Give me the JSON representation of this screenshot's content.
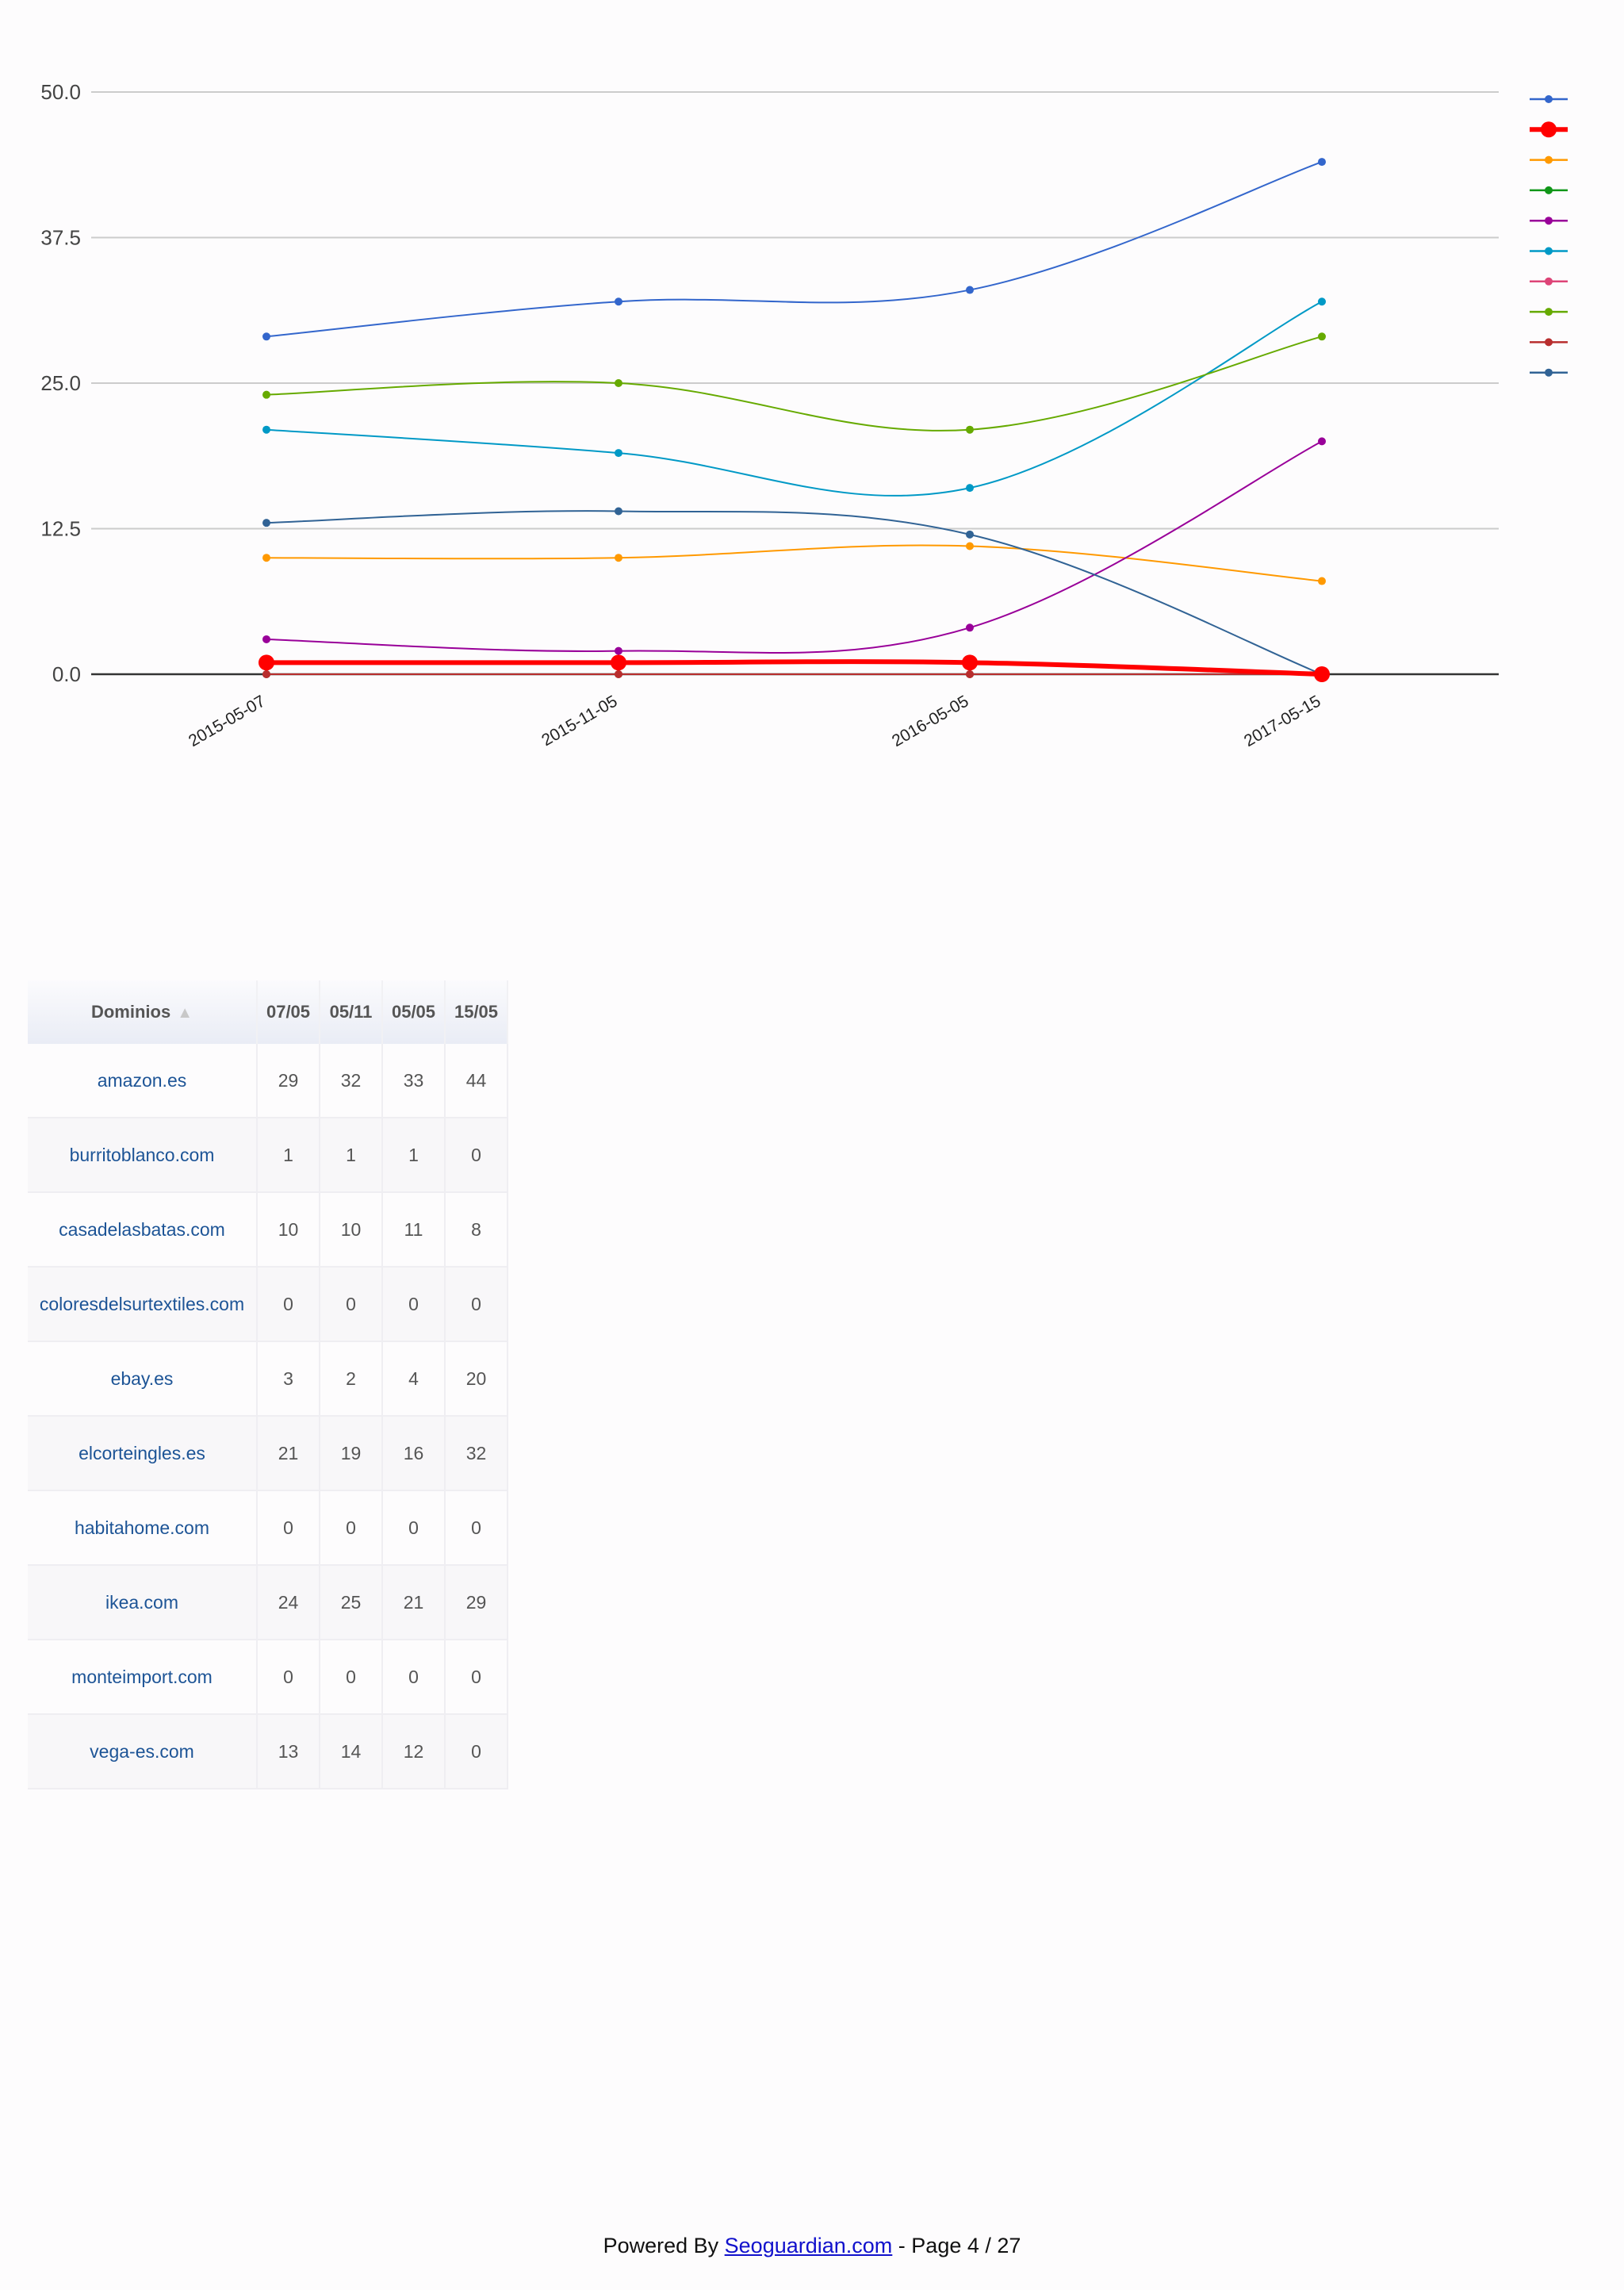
{
  "chart_data": {
    "type": "line",
    "title": "",
    "xlabel": "",
    "ylabel": "",
    "x": [
      "2015-05-07",
      "2015-11-05",
      "2016-05-05",
      "2017-05-15"
    ],
    "ylim": [
      0,
      50
    ],
    "yticks": [
      "0.0",
      "12.5",
      "25.0",
      "37.5",
      "50.0"
    ],
    "grid": true,
    "legend_position": "right",
    "legend_labels_visible": false,
    "smooth": true,
    "series": [
      {
        "name": "amazon.es",
        "color": "#3366cc",
        "values": [
          29,
          32,
          33,
          44
        ]
      },
      {
        "name": "burritoblanco.com",
        "color": "#ff0000",
        "highlighted": true,
        "values": [
          1,
          1,
          1,
          0
        ]
      },
      {
        "name": "casadelasbatas.com",
        "color": "#ff9900",
        "values": [
          10,
          10,
          11,
          8
        ]
      },
      {
        "name": "coloresdelsurtextiles.com",
        "color": "#109618",
        "values": [
          0,
          0,
          0,
          0
        ]
      },
      {
        "name": "ebay.es",
        "color": "#990099",
        "values": [
          3,
          2,
          4,
          20
        ]
      },
      {
        "name": "elcorteingles.es",
        "color": "#0099c6",
        "values": [
          21,
          19,
          16,
          32
        ]
      },
      {
        "name": "habitahome.com",
        "color": "#dd4477",
        "values": [
          0,
          0,
          0,
          0
        ]
      },
      {
        "name": "ikea.com",
        "color": "#66aa00",
        "values": [
          24,
          25,
          21,
          29
        ]
      },
      {
        "name": "monteimport.com",
        "color": "#b82e2e",
        "values": [
          0,
          0,
          0,
          0
        ]
      },
      {
        "name": "vega-es.com",
        "color": "#316395",
        "values": [
          13,
          14,
          12,
          0
        ]
      }
    ]
  },
  "table": {
    "headers": {
      "domain": "Dominios",
      "sort_icon": "▲",
      "c0": "07/05",
      "c1": "05/11",
      "c2": "05/05",
      "c3": "15/05"
    },
    "rows": [
      {
        "domain": "amazon.es",
        "v": [
          "29",
          "32",
          "33",
          "44"
        ]
      },
      {
        "domain": "burritoblanco.com",
        "v": [
          "1",
          "1",
          "1",
          "0"
        ]
      },
      {
        "domain": "casadelasbatas.com",
        "v": [
          "10",
          "10",
          "11",
          "8"
        ]
      },
      {
        "domain": "coloresdelsurtextiles.com",
        "v": [
          "0",
          "0",
          "0",
          "0"
        ]
      },
      {
        "domain": "ebay.es",
        "v": [
          "3",
          "2",
          "4",
          "20"
        ]
      },
      {
        "domain": "elcorteingles.es",
        "v": [
          "21",
          "19",
          "16",
          "32"
        ]
      },
      {
        "domain": "habitahome.com",
        "v": [
          "0",
          "0",
          "0",
          "0"
        ]
      },
      {
        "domain": "ikea.com",
        "v": [
          "24",
          "25",
          "21",
          "29"
        ]
      },
      {
        "domain": "monteimport.com",
        "v": [
          "0",
          "0",
          "0",
          "0"
        ]
      },
      {
        "domain": "vega-es.com",
        "v": [
          "13",
          "14",
          "12",
          "0"
        ]
      }
    ]
  },
  "footer": {
    "prefix": "Powered By ",
    "link": "Seoguardian.com",
    "suffix": " - Page 4 / 27"
  }
}
